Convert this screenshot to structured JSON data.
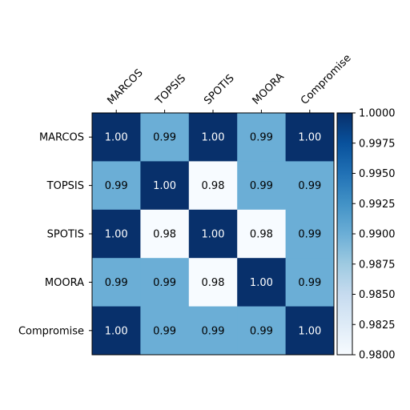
{
  "chart_data": {
    "type": "heatmap",
    "title": "",
    "xlabel": "",
    "ylabel": "",
    "rows": [
      "MARCOS",
      "TOPSIS",
      "SPOTIS",
      "MOORA",
      "Compromise"
    ],
    "cols": [
      "MARCOS",
      "TOPSIS",
      "SPOTIS",
      "MOORA",
      "Compromise"
    ],
    "values": [
      [
        1.0,
        0.99,
        1.0,
        0.99,
        1.0
      ],
      [
        0.99,
        1.0,
        0.98,
        0.99,
        0.99
      ],
      [
        1.0,
        0.98,
        1.0,
        0.98,
        0.99
      ],
      [
        0.99,
        0.99,
        0.98,
        1.0,
        0.99
      ],
      [
        1.0,
        0.99,
        0.99,
        0.99,
        1.0
      ]
    ],
    "labels": [
      [
        "1.00",
        "0.99",
        "1.00",
        "0.99",
        "1.00"
      ],
      [
        "0.99",
        "1.00",
        "0.98",
        "0.99",
        "0.99"
      ],
      [
        "1.00",
        "0.98",
        "1.00",
        "0.98",
        "0.99"
      ],
      [
        "0.99",
        "0.99",
        "0.98",
        "1.00",
        "0.99"
      ],
      [
        "1.00",
        "0.99",
        "0.99",
        "0.99",
        "1.00"
      ]
    ],
    "colormap": "Blues",
    "colorbar": {
      "vmin": 0.98,
      "vmax": 1.0,
      "ticks": [
        0.98,
        0.9825,
        0.985,
        0.9875,
        0.99,
        0.9925,
        0.995,
        0.9975,
        1.0
      ],
      "tick_labels": [
        "0.9800",
        "0.9825",
        "0.9850",
        "0.9875",
        "0.9900",
        "0.9925",
        "0.9950",
        "0.9975",
        "1.0000"
      ]
    },
    "colors": {
      "low": "#f7fbff",
      "mid": "#6baed6",
      "high": "#08306b"
    }
  }
}
